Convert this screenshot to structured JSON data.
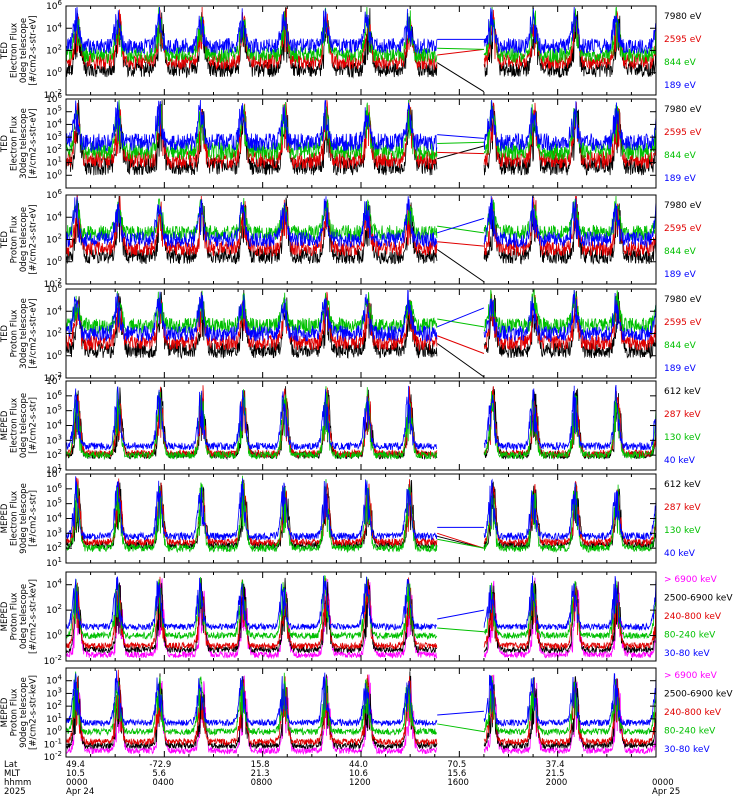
{
  "chart_data": [
    {
      "type": "line",
      "ylabel": [
        "TED",
        "Electron Flux",
        "0deg telescope",
        "[#/cm2-s-str-eV]"
      ],
      "yscale": "log",
      "ylim_exp": [
        -2,
        6
      ],
      "tick_exps": [
        -2,
        0,
        2,
        4,
        6
      ],
      "series": [
        {
          "name": "7980 eV",
          "color": "#000000",
          "base_exp": 0.3,
          "low_exp": -1.7
        },
        {
          "name": "2595 eV",
          "color": "#e00000",
          "base_exp": 1.0,
          "low_exp": 2.1
        },
        {
          "name": "844 eV",
          "color": "#00c000",
          "base_exp": 1.6,
          "low_exp": 2.1
        },
        {
          "name": "189 eV",
          "color": "#0000ff",
          "base_exp": 2.4,
          "low_exp": 3.0
        }
      ]
    },
    {
      "type": "line",
      "ylabel": [
        "TED",
        "Electron Flux",
        "30deg telescope",
        "[#/cm2-s-str-eV]"
      ],
      "yscale": "log",
      "ylim_exp": [
        -1,
        6
      ],
      "tick_exps": [
        0,
        1,
        2,
        3,
        4,
        5,
        6
      ],
      "series": [
        {
          "name": "7980 eV",
          "color": "#000000",
          "base_exp": 0.7,
          "low_exp": 2.3
        },
        {
          "name": "2595 eV",
          "color": "#e00000",
          "base_exp": 1.2,
          "low_exp": 1.7
        },
        {
          "name": "844 eV",
          "color": "#00c000",
          "base_exp": 1.9,
          "low_exp": 2.6
        },
        {
          "name": "189 eV",
          "color": "#0000ff",
          "base_exp": 2.6,
          "low_exp": 2.9
        }
      ]
    },
    {
      "type": "line",
      "ylabel": [
        "TED",
        "Proton Flux",
        "0deg telescope",
        "[#/cm2-s-str-eV]"
      ],
      "yscale": "log",
      "ylim_exp": [
        -2,
        6
      ],
      "tick_exps": [
        -2,
        0,
        2,
        4,
        6
      ],
      "series": [
        {
          "name": "7980 eV",
          "color": "#000000",
          "base_exp": 0.5,
          "low_exp": -1.8
        },
        {
          "name": "2595 eV",
          "color": "#e00000",
          "base_exp": 1.2,
          "low_exp": 1.4
        },
        {
          "name": "844 eV",
          "color": "#00c000",
          "base_exp": 2.6,
          "low_exp": 2.6
        },
        {
          "name": "189 eV",
          "color": "#0000ff",
          "base_exp": 2.0,
          "low_exp": 3.9
        }
      ]
    },
    {
      "type": "line",
      "ylabel": [
        "TED",
        "Proton Flux",
        "30deg telescope",
        "[#/cm2-s-str-eV]"
      ],
      "yscale": "log",
      "ylim_exp": [
        -2,
        6
      ],
      "tick_exps": [
        -2,
        0,
        2,
        4,
        6
      ],
      "series": [
        {
          "name": "7980 eV",
          "color": "#000000",
          "base_exp": 0.5,
          "low_exp": -1.9
        },
        {
          "name": "2595 eV",
          "color": "#e00000",
          "base_exp": 1.2,
          "low_exp": 0.2
        },
        {
          "name": "844 eV",
          "color": "#00c000",
          "base_exp": 2.7,
          "low_exp": 2.6
        },
        {
          "name": "189 eV",
          "color": "#0000ff",
          "base_exp": 2.0,
          "low_exp": 4.3
        }
      ]
    },
    {
      "type": "line",
      "ylabel": [
        "MEPED",
        "Electron Flux",
        "0deg telescope",
        "[#/cm2-s-str]"
      ],
      "yscale": "log",
      "ylim_exp": [
        1,
        7
      ],
      "tick_exps": [
        1,
        2,
        3,
        4,
        5,
        6,
        7
      ],
      "series": [
        {
          "name": "612 keV",
          "color": "#000000",
          "base_exp": 2.0,
          "low_exp": null
        },
        {
          "name": "287 keV",
          "color": "#e00000",
          "base_exp": 2.1,
          "low_exp": null
        },
        {
          "name": "130 keV",
          "color": "#00c000",
          "base_exp": 2.0,
          "low_exp": null
        },
        {
          "name": "40 keV",
          "color": "#0000ff",
          "base_exp": 2.6,
          "low_exp": null
        }
      ]
    },
    {
      "type": "line",
      "ylabel": [
        "MEPED",
        "Electron Flux",
        "90deg telescope",
        "[#/cm2-s-str]"
      ],
      "yscale": "log",
      "ylim_exp": [
        1,
        7
      ],
      "tick_exps": [
        1,
        2,
        3,
        4,
        5,
        6,
        7
      ],
      "series": [
        {
          "name": "612 keV",
          "color": "#000000",
          "base_exp": 2.2,
          "low_exp": 2.0
        },
        {
          "name": "287 keV",
          "color": "#e00000",
          "base_exp": 2.4,
          "low_exp": 2.0
        },
        {
          "name": "130 keV",
          "color": "#00c000",
          "base_exp": 2.0,
          "low_exp": 2.0
        },
        {
          "name": "40 keV",
          "color": "#0000ff",
          "base_exp": 2.8,
          "low_exp": 3.4
        }
      ]
    },
    {
      "type": "line",
      "ylabel": [
        "MEPED",
        "Proton Flux",
        "0deg telescope",
        "[#/cm2-s-str-keV]"
      ],
      "yscale": "log",
      "ylim_exp": [
        -2,
        5
      ],
      "tick_exps": [
        -2,
        0,
        2,
        4
      ],
      "series": [
        {
          "name": "> 6900 keV",
          "color": "#ff00ff",
          "base_exp": -1.5,
          "low_exp": null
        },
        {
          "name": "2500-6900 keV",
          "color": "#000000",
          "base_exp": -1.1,
          "low_exp": null
        },
        {
          "name": "240-800 keV",
          "color": "#e00000",
          "base_exp": -0.8,
          "low_exp": null
        },
        {
          "name": "80-240 keV",
          "color": "#00c000",
          "base_exp": 0.0,
          "low_exp": 0.3
        },
        {
          "name": "30-80 keV",
          "color": "#0000ff",
          "base_exp": 0.7,
          "low_exp": 2.0
        }
      ]
    },
    {
      "type": "line",
      "ylabel": [
        "MEPED",
        "Proton Flux",
        "90deg telescope",
        "[#/cm2-s-str-keV]"
      ],
      "yscale": "log",
      "ylim_exp": [
        -2,
        5
      ],
      "tick_exps": [
        -2,
        -1,
        0,
        1,
        2,
        3,
        4
      ],
      "series": [
        {
          "name": "> 6900 keV",
          "color": "#ff00ff",
          "base_exp": -1.5,
          "low_exp": null
        },
        {
          "name": "2500-6900 keV",
          "color": "#000000",
          "base_exp": -1.1,
          "low_exp": null
        },
        {
          "name": "240-800 keV",
          "color": "#e00000",
          "base_exp": -0.8,
          "low_exp": null
        },
        {
          "name": "80-240 keV",
          "color": "#00c000",
          "base_exp": 0.0,
          "low_exp": 0.0
        },
        {
          "name": "30-80 keV",
          "color": "#0000ff",
          "base_exp": 0.7,
          "low_exp": 1.6
        }
      ]
    }
  ],
  "time_axis": {
    "hours_range": [
      0,
      24
    ],
    "data_gap_hours": [
      15.1,
      17.0
    ],
    "major_ticks_hours": [
      0,
      4,
      8,
      12,
      16,
      20,
      24
    ],
    "row_labels": [
      "Lat",
      "MLT",
      "hhmm",
      "2025"
    ],
    "columns": [
      {
        "hour": 0,
        "lat": "49.4",
        "mlt": "10.5",
        "hhmm": "0000",
        "date": "Apr 24"
      },
      {
        "hour": 4,
        "lat": "-72.9",
        "mlt": "5.6",
        "hhmm": "0400",
        "date": ""
      },
      {
        "hour": 8,
        "lat": "15.8",
        "mlt": "21.3",
        "hhmm": "0800",
        "date": ""
      },
      {
        "hour": 12,
        "lat": "44.0",
        "mlt": "10.6",
        "hhmm": "1200",
        "date": ""
      },
      {
        "hour": 16,
        "lat": "70.5",
        "mlt": "15.6",
        "hhmm": "1600",
        "date": ""
      },
      {
        "hour": 20,
        "lat": "37.4",
        "mlt": "21.5",
        "hhmm": "2000",
        "date": ""
      },
      {
        "hour": 24,
        "lat": "",
        "mlt": "",
        "hhmm": "0000",
        "date": "Apr 25"
      }
    ]
  }
}
